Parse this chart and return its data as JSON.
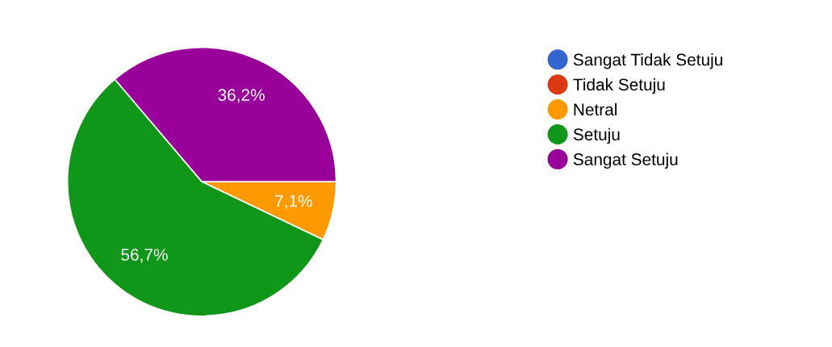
{
  "chart_data": {
    "type": "pie",
    "categories": [
      "Sangat Tidak Setuju",
      "Tidak Setuju",
      "Netral",
      "Setuju",
      "Sangat Setuju"
    ],
    "values": [
      0,
      0,
      7.1,
      56.7,
      36.2
    ],
    "colors": [
      "#3366cc",
      "#dc3912",
      "#ff9900",
      "#109618",
      "#990099"
    ],
    "value_labels": [
      null,
      null,
      "7,1%",
      "56,7%",
      "36,2%"
    ],
    "legend": "right"
  }
}
